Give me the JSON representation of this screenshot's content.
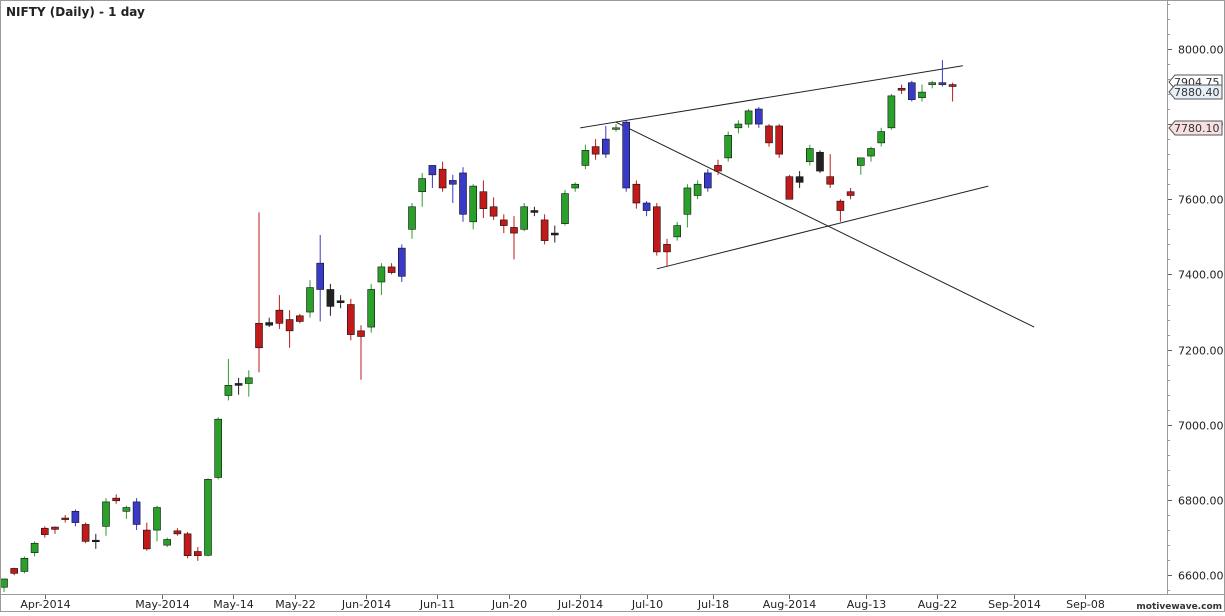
{
  "chart_data": {
    "type": "candlestick",
    "title": "NIFTY (Daily) - 1 day",
    "watermark": "motivewave.com",
    "ylim": [
      6550,
      8130
    ],
    "y_ticks": [
      6600,
      6800,
      7000,
      7200,
      7400,
      7600,
      7800,
      8000
    ],
    "y_tick_labels": [
      "6600.00",
      "6800.00",
      "7000.00",
      "7200.00",
      "7400.00",
      "7600.00",
      "7800.00",
      "8000.00"
    ],
    "x_ticks": [
      {
        "index": 4,
        "label": "Apr-2014"
      },
      {
        "index": 15.5,
        "label": "May-2014"
      },
      {
        "index": 22.5,
        "label": "May-14"
      },
      {
        "index": 28.5,
        "label": "May-22"
      },
      {
        "index": 35.5,
        "label": "Jun-2014"
      },
      {
        "index": 42.5,
        "label": "Jun-11"
      },
      {
        "index": 49.5,
        "label": "Jun-20"
      },
      {
        "index": 56.5,
        "label": "Jul-2014"
      },
      {
        "index": 63,
        "label": "Jul-10"
      },
      {
        "index": 69.5,
        "label": "Jul-18"
      },
      {
        "index": 77,
        "label": "Aug-2014"
      },
      {
        "index": 84.5,
        "label": "Aug-13"
      },
      {
        "index": 91.5,
        "label": "Aug-22"
      },
      {
        "index": 99,
        "label": "Sep-2014"
      },
      {
        "index": 106,
        "label": "Sep-08"
      }
    ],
    "price_tags": [
      {
        "value": 7904.75,
        "label": "7904.75",
        "color": "#333333",
        "fill": "#ffffff"
      },
      {
        "value": 7880.4,
        "label": "7880.40",
        "color": "#333333",
        "fill": "#e6f0f8"
      },
      {
        "value": 7780.1,
        "label": "7780.10",
        "color": "#333333",
        "fill": "#f8e0e0"
      }
    ],
    "colors": {
      "up": "#2aa02a",
      "down": "#c01a1a",
      "blue": "#3a3ac8",
      "black": "#222222"
    },
    "candles": [
      {
        "o": 6568,
        "h": 6590,
        "l": 6555,
        "c": 6590,
        "col": "up"
      },
      {
        "o": 6618,
        "h": 6620,
        "l": 6600,
        "c": 6605,
        "col": "down"
      },
      {
        "o": 6610,
        "h": 6650,
        "l": 6605,
        "c": 6645,
        "col": "up"
      },
      {
        "o": 6660,
        "h": 6690,
        "l": 6650,
        "c": 6685,
        "col": "up"
      },
      {
        "o": 6725,
        "h": 6730,
        "l": 6700,
        "c": 6708,
        "col": "down"
      },
      {
        "o": 6728,
        "h": 6730,
        "l": 6710,
        "c": 6722,
        "col": "down"
      },
      {
        "o": 6752,
        "h": 6760,
        "l": 6740,
        "c": 6748,
        "col": "down"
      },
      {
        "o": 6740,
        "h": 6775,
        "l": 6730,
        "c": 6770,
        "col": "blue"
      },
      {
        "o": 6735,
        "h": 6740,
        "l": 6685,
        "c": 6690,
        "col": "down"
      },
      {
        "o": 6690,
        "h": 6710,
        "l": 6670,
        "c": 6693,
        "col": "black"
      },
      {
        "o": 6730,
        "h": 6805,
        "l": 6705,
        "c": 6795,
        "col": "up"
      },
      {
        "o": 6805,
        "h": 6815,
        "l": 6790,
        "c": 6798,
        "col": "down"
      },
      {
        "o": 6770,
        "h": 6785,
        "l": 6750,
        "c": 6780,
        "col": "up"
      },
      {
        "o": 6795,
        "h": 6805,
        "l": 6720,
        "c": 6735,
        "col": "blue"
      },
      {
        "o": 6720,
        "h": 6740,
        "l": 6665,
        "c": 6670,
        "col": "down"
      },
      {
        "o": 6720,
        "h": 6785,
        "l": 6690,
        "c": 6780,
        "col": "up"
      },
      {
        "o": 6695,
        "h": 6700,
        "l": 6675,
        "c": 6680,
        "col": "up"
      },
      {
        "o": 6718,
        "h": 6725,
        "l": 6705,
        "c": 6710,
        "col": "down"
      },
      {
        "o": 6710,
        "h": 6715,
        "l": 6645,
        "c": 6652,
        "col": "down"
      },
      {
        "o": 6663,
        "h": 6675,
        "l": 6638,
        "c": 6652,
        "col": "down"
      },
      {
        "o": 6653,
        "h": 6858,
        "l": 6650,
        "c": 6855,
        "col": "up"
      },
      {
        "o": 6860,
        "h": 7020,
        "l": 6855,
        "c": 7015,
        "col": "up"
      },
      {
        "o": 7078,
        "h": 7175,
        "l": 7065,
        "c": 7105,
        "col": "up"
      },
      {
        "o": 7105,
        "h": 7125,
        "l": 7080,
        "c": 7110,
        "col": "black"
      },
      {
        "o": 7110,
        "h": 7145,
        "l": 7075,
        "c": 7125,
        "col": "up"
      },
      {
        "o": 7270,
        "h": 7565,
        "l": 7140,
        "c": 7205,
        "col": "down"
      },
      {
        "o": 7272,
        "h": 7285,
        "l": 7260,
        "c": 7265,
        "col": "black"
      },
      {
        "o": 7305,
        "h": 7345,
        "l": 7255,
        "c": 7270,
        "col": "down"
      },
      {
        "o": 7280,
        "h": 7305,
        "l": 7205,
        "c": 7250,
        "col": "down"
      },
      {
        "o": 7290,
        "h": 7295,
        "l": 7270,
        "c": 7275,
        "col": "down"
      },
      {
        "o": 7300,
        "h": 7385,
        "l": 7285,
        "c": 7365,
        "col": "up"
      },
      {
        "o": 7360,
        "h": 7505,
        "l": 7275,
        "c": 7430,
        "col": "blue"
      },
      {
        "o": 7360,
        "h": 7375,
        "l": 7290,
        "c": 7315,
        "col": "black"
      },
      {
        "o": 7330,
        "h": 7345,
        "l": 7310,
        "c": 7325,
        "col": "black"
      },
      {
        "o": 7320,
        "h": 7335,
        "l": 7225,
        "c": 7240,
        "col": "down"
      },
      {
        "o": 7250,
        "h": 7265,
        "l": 7120,
        "c": 7235,
        "col": "down"
      },
      {
        "o": 7260,
        "h": 7375,
        "l": 7245,
        "c": 7360,
        "col": "up"
      },
      {
        "o": 7380,
        "h": 7430,
        "l": 7345,
        "c": 7420,
        "col": "up"
      },
      {
        "o": 7420,
        "h": 7430,
        "l": 7400,
        "c": 7405,
        "col": "down"
      },
      {
        "o": 7395,
        "h": 7480,
        "l": 7380,
        "c": 7470,
        "col": "blue"
      },
      {
        "o": 7520,
        "h": 7590,
        "l": 7495,
        "c": 7580,
        "col": "up"
      },
      {
        "o": 7620,
        "h": 7670,
        "l": 7580,
        "c": 7655,
        "col": "up"
      },
      {
        "o": 7665,
        "h": 7690,
        "l": 7630,
        "c": 7690,
        "col": "blue"
      },
      {
        "o": 7680,
        "h": 7700,
        "l": 7620,
        "c": 7630,
        "col": "down"
      },
      {
        "o": 7640,
        "h": 7665,
        "l": 7590,
        "c": 7650,
        "col": "blue"
      },
      {
        "o": 7670,
        "h": 7685,
        "l": 7540,
        "c": 7560,
        "col": "blue"
      },
      {
        "o": 7540,
        "h": 7640,
        "l": 7520,
        "c": 7635,
        "col": "up"
      },
      {
        "o": 7620,
        "h": 7650,
        "l": 7550,
        "c": 7575,
        "col": "down"
      },
      {
        "o": 7580,
        "h": 7605,
        "l": 7545,
        "c": 7555,
        "col": "down"
      },
      {
        "o": 7545,
        "h": 7560,
        "l": 7510,
        "c": 7530,
        "col": "down"
      },
      {
        "o": 7525,
        "h": 7555,
        "l": 7440,
        "c": 7510,
        "col": "down"
      },
      {
        "o": 7520,
        "h": 7590,
        "l": 7515,
        "c": 7580,
        "col": "up"
      },
      {
        "o": 7570,
        "h": 7580,
        "l": 7555,
        "c": 7565,
        "col": "black"
      },
      {
        "o": 7545,
        "h": 7560,
        "l": 7480,
        "c": 7490,
        "col": "down"
      },
      {
        "o": 7505,
        "h": 7530,
        "l": 7485,
        "c": 7510,
        "col": "black"
      },
      {
        "o": 7535,
        "h": 7625,
        "l": 7530,
        "c": 7615,
        "col": "up"
      },
      {
        "o": 7630,
        "h": 7645,
        "l": 7620,
        "c": 7640,
        "col": "up"
      },
      {
        "o": 7690,
        "h": 7745,
        "l": 7680,
        "c": 7730,
        "col": "up"
      },
      {
        "o": 7740,
        "h": 7760,
        "l": 7705,
        "c": 7720,
        "col": "down"
      },
      {
        "o": 7720,
        "h": 7795,
        "l": 7710,
        "c": 7760,
        "col": "blue"
      },
      {
        "o": 7790,
        "h": 7800,
        "l": 7780,
        "c": 7790,
        "col": "up"
      },
      {
        "o": 7805,
        "h": 7810,
        "l": 7620,
        "c": 7630,
        "col": "blue"
      },
      {
        "o": 7640,
        "h": 7650,
        "l": 7575,
        "c": 7590,
        "col": "down"
      },
      {
        "o": 7570,
        "h": 7595,
        "l": 7555,
        "c": 7590,
        "col": "blue"
      },
      {
        "o": 7580,
        "h": 7590,
        "l": 7450,
        "c": 7460,
        "col": "down"
      },
      {
        "o": 7480,
        "h": 7495,
        "l": 7420,
        "c": 7460,
        "col": "down"
      },
      {
        "o": 7500,
        "h": 7540,
        "l": 7490,
        "c": 7530,
        "col": "up"
      },
      {
        "o": 7560,
        "h": 7640,
        "l": 7525,
        "c": 7630,
        "col": "up"
      },
      {
        "o": 7610,
        "h": 7650,
        "l": 7600,
        "c": 7640,
        "col": "up"
      },
      {
        "o": 7630,
        "h": 7680,
        "l": 7620,
        "c": 7670,
        "col": "blue"
      },
      {
        "o": 7690,
        "h": 7705,
        "l": 7665,
        "c": 7675,
        "col": "down"
      },
      {
        "o": 7710,
        "h": 7780,
        "l": 7700,
        "c": 7770,
        "col": "up"
      },
      {
        "o": 7790,
        "h": 7810,
        "l": 7775,
        "c": 7800,
        "col": "up"
      },
      {
        "o": 7800,
        "h": 7840,
        "l": 7790,
        "c": 7835,
        "col": "up"
      },
      {
        "o": 7840,
        "h": 7845,
        "l": 7790,
        "c": 7800,
        "col": "blue"
      },
      {
        "o": 7795,
        "h": 7800,
        "l": 7740,
        "c": 7750,
        "col": "down"
      },
      {
        "o": 7795,
        "h": 7800,
        "l": 7710,
        "c": 7720,
        "col": "down"
      },
      {
        "o": 7660,
        "h": 7665,
        "l": 7600,
        "c": 7600,
        "col": "down"
      },
      {
        "o": 7660,
        "h": 7675,
        "l": 7630,
        "c": 7645,
        "col": "black"
      },
      {
        "o": 7700,
        "h": 7745,
        "l": 7690,
        "c": 7735,
        "col": "up"
      },
      {
        "o": 7725,
        "h": 7730,
        "l": 7670,
        "c": 7675,
        "col": "black"
      },
      {
        "o": 7660,
        "h": 7720,
        "l": 7630,
        "c": 7640,
        "col": "down"
      },
      {
        "o": 7595,
        "h": 7600,
        "l": 7540,
        "c": 7570,
        "col": "down"
      },
      {
        "o": 7620,
        "h": 7630,
        "l": 7600,
        "c": 7610,
        "col": "down"
      },
      {
        "o": 7690,
        "h": 7710,
        "l": 7665,
        "c": 7710,
        "col": "up"
      },
      {
        "o": 7715,
        "h": 7740,
        "l": 7700,
        "c": 7735,
        "col": "up"
      },
      {
        "o": 7750,
        "h": 7790,
        "l": 7740,
        "c": 7780,
        "col": "up"
      },
      {
        "o": 7790,
        "h": 7880,
        "l": 7785,
        "c": 7875,
        "col": "up"
      },
      {
        "o": 7895,
        "h": 7905,
        "l": 7880,
        "c": 7890,
        "col": "down"
      },
      {
        "o": 7865,
        "h": 7915,
        "l": 7860,
        "c": 7910,
        "col": "blue"
      },
      {
        "o": 7870,
        "h": 7905,
        "l": 7860,
        "c": 7885,
        "col": "up"
      },
      {
        "o": 7905,
        "h": 7915,
        "l": 7895,
        "c": 7910,
        "col": "up"
      },
      {
        "o": 7905,
        "h": 7970,
        "l": 7900,
        "c": 7910,
        "col": "blue"
      },
      {
        "o": 7905,
        "h": 7910,
        "l": 7860,
        "c": 7900,
        "col": "down"
      }
    ],
    "trendlines": [
      {
        "x1": 56.5,
        "y1": 7790,
        "x2": 94,
        "y2": 7955
      },
      {
        "x1": 60,
        "y1": 7805,
        "x2": 101,
        "y2": 7260
      },
      {
        "x1": 64,
        "y1": 7415,
        "x2": 96.5,
        "y2": 7635
      }
    ]
  }
}
